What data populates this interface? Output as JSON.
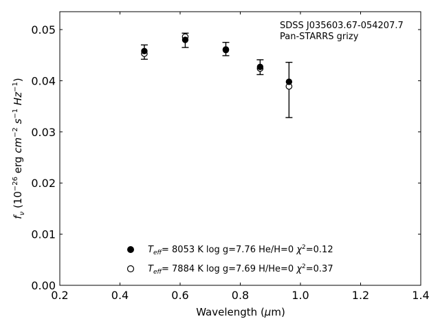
{
  "chart_data": {
    "type": "scatter",
    "xlabel": "Wavelength (μm)",
    "ylabel": "f_ν (10^-26 erg cm^-2 s^-1 Hz^-1)",
    "xlim": [
      0.2,
      1.4
    ],
    "ylim": [
      0.0,
      0.0535
    ],
    "x_ticks": [
      "0.2",
      "0.4",
      "0.6",
      "0.8",
      "1.0",
      "1.2",
      "1.4"
    ],
    "y_ticks": [
      "0.00",
      "0.01",
      "0.02",
      "0.03",
      "0.04",
      "0.05"
    ],
    "grid": false,
    "annotation": [
      "SDSS J035603.67-054207.7",
      "Pan-STARRS grizy"
    ],
    "observed": {
      "x": [
        0.481,
        0.617,
        0.752,
        0.866,
        0.962
      ],
      "y": [
        0.0456,
        0.0479,
        0.0462,
        0.0426,
        0.0382
      ],
      "yerr_low": [
        0.0442,
        0.0465,
        0.0449,
        0.0412,
        0.0328
      ],
      "yerr_high": [
        0.047,
        0.0493,
        0.0475,
        0.0441,
        0.0436
      ]
    },
    "series": [
      {
        "marker": "filled-circle",
        "x": [
          0.481,
          0.617,
          0.752,
          0.866,
          0.962
        ],
        "y": [
          0.0458,
          0.048,
          0.046,
          0.0427,
          0.0398
        ],
        "legend_parts": {
          "teff_value": "8053 K",
          "params": "log g=7.76  He/H=0",
          "chi2": "=0.12"
        }
      },
      {
        "marker": "open-circle",
        "x": [
          0.481,
          0.617,
          0.752,
          0.866,
          0.962
        ],
        "y": [
          0.0453,
          0.0486,
          0.0461,
          0.0424,
          0.0389
        ],
        "legend_parts": {
          "teff_value": "7884 K",
          "params": "log g=7.69  H/He=0",
          "chi2": "=0.37"
        }
      }
    ],
    "legend_placement": "bottom-center"
  }
}
